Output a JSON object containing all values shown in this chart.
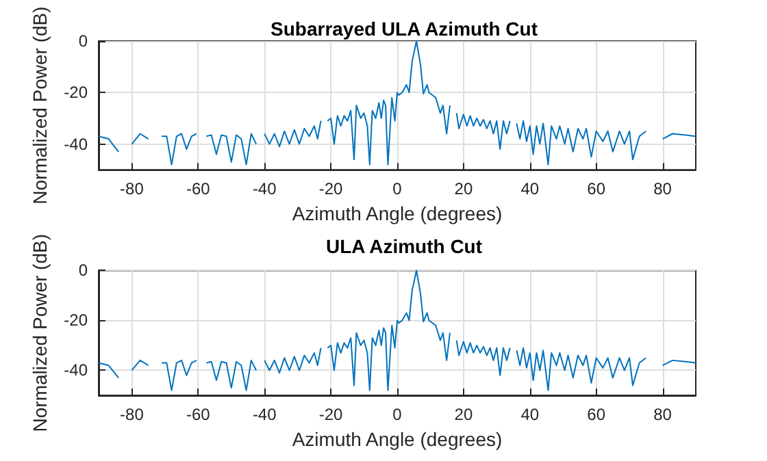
{
  "chart_data": [
    {
      "type": "line",
      "title": "Subarrayed ULA Azimuth Cut",
      "xlabel": "Azimuth Angle (degrees)",
      "ylabel": "Normalized Power (dB)",
      "xlim": [
        -90,
        90
      ],
      "ylim": [
        -50,
        0
      ],
      "xticks": [
        -80,
        -60,
        -40,
        -20,
        0,
        20,
        40,
        60,
        80
      ],
      "yticks": [
        -40,
        -20,
        0
      ],
      "grid": true,
      "marker": "none",
      "line_style": "solid",
      "series": [
        {
          "color": "#0072bd",
          "x": [
            -90,
            -87,
            -84,
            -82.5,
            -80,
            -77.5,
            -75,
            -73,
            -71,
            -69.5,
            -68,
            -66.5,
            -65,
            -63.5,
            -62,
            -60.5,
            -59,
            -57.5,
            -56,
            -54.5,
            -53,
            -51.5,
            -50,
            -48.5,
            -47,
            -45.5,
            -44,
            -42.5,
            -41,
            -40,
            -38.5,
            -37,
            -35.5,
            -34,
            -32.5,
            -31,
            -29.5,
            -28,
            -26.5,
            -25,
            -24,
            -23,
            -22,
            -21,
            -20,
            -19,
            -18,
            -17,
            -16,
            -15,
            -14,
            -13,
            -12.3,
            -11,
            -10,
            -9,
            -8.3,
            -7.5,
            -6.5,
            -5.5,
            -4.8,
            -4.1,
            -3.5,
            -2.8,
            -1.6,
            -0.7,
            0,
            0.5,
            1.5,
            2.8,
            3.6,
            4.5,
            5.8,
            7,
            7.9,
            9,
            9.6,
            11.6,
            13,
            13.8,
            14.9,
            15.9,
            16.8,
            17.9,
            18.6,
            20,
            21,
            22,
            23,
            24,
            25,
            26,
            27,
            28,
            29,
            30,
            31,
            32,
            33,
            34,
            35,
            36,
            37,
            38,
            39,
            40,
            41,
            42,
            43,
            44,
            45.5,
            46.5,
            48,
            49,
            50.5,
            51.5,
            53,
            54.5,
            56,
            57,
            58.5,
            60,
            62,
            63.5,
            65,
            67,
            68.5,
            70,
            71,
            73,
            75,
            77.7,
            80,
            83,
            87,
            90
          ],
          "values": [
            -37,
            -38,
            -43,
            null,
            -40,
            -36,
            -38,
            null,
            -37,
            -37,
            -48,
            -37,
            -36,
            -42,
            -37,
            -36,
            null,
            -37,
            -36.5,
            -44,
            -36.5,
            -37,
            -47,
            -36.5,
            -38,
            -48,
            -36,
            -40,
            null,
            -36,
            -40,
            -36,
            -41,
            -35,
            -40,
            -34.5,
            -40,
            -34,
            -37,
            -33,
            -38,
            -31,
            null,
            -31,
            -30,
            -40,
            -29,
            -33,
            -29,
            -31,
            -27,
            -46,
            -25,
            -30,
            -28,
            -33,
            -48,
            -27,
            -30,
            -24,
            -30,
            -23,
            -25,
            -48,
            -22,
            -31,
            -20,
            -21,
            -20,
            -17,
            -20,
            -8,
            0,
            -9,
            -20.5,
            -17,
            -20,
            -22,
            -28,
            -25,
            -36,
            -25,
            null,
            -28,
            -34,
            -28.5,
            -33,
            -29,
            -33,
            -30,
            -33,
            -30.5,
            -34,
            -31,
            -36,
            -31,
            -42,
            -31,
            -36,
            -31,
            null,
            -32,
            -38,
            -31,
            -39,
            -33,
            -44,
            -33,
            -40,
            -32,
            -48,
            -33,
            -38,
            -33,
            -40,
            -34,
            -43,
            -34,
            -38,
            -34,
            -45,
            -35,
            -39,
            -35,
            -43,
            -35,
            -40,
            -35,
            -46,
            -37,
            -35,
            null,
            -38,
            -36,
            -36.5,
            -37
          ]
        }
      ]
    },
    {
      "type": "line",
      "title": "ULA Azimuth Cut",
      "xlabel": "Azimuth Angle (degrees)",
      "ylabel": "Normalized Power (dB)",
      "xlim": [
        -90,
        90
      ],
      "ylim": [
        -50,
        0
      ],
      "xticks": [
        -80,
        -60,
        -40,
        -20,
        0,
        20,
        40,
        60,
        80
      ],
      "yticks": [
        -40,
        -20,
        0
      ],
      "grid": true,
      "marker": "none",
      "line_style": "solid",
      "series": [
        {
          "color": "#0072bd",
          "x": [
            -90,
            -87,
            -84,
            -82.5,
            -80,
            -77.5,
            -75,
            -73,
            -71,
            -69.5,
            -68,
            -66.5,
            -65,
            -63.5,
            -62,
            -60.5,
            -59,
            -57.5,
            -56,
            -54.5,
            -53,
            -51.5,
            -50,
            -48.5,
            -47,
            -45.5,
            -44,
            -42.5,
            -41,
            -40,
            -38.5,
            -37,
            -35.5,
            -34,
            -32.5,
            -31,
            -29.5,
            -28,
            -26.5,
            -25,
            -24,
            -23,
            -22,
            -21,
            -20,
            -19,
            -18,
            -17,
            -16,
            -15,
            -14,
            -13,
            -12.3,
            -11,
            -10,
            -9,
            -8.3,
            -7.5,
            -6.5,
            -5.5,
            -4.8,
            -4.1,
            -3.5,
            -2.8,
            -1.6,
            -0.7,
            0,
            0.5,
            1.5,
            2.8,
            3.6,
            4.5,
            5.8,
            7,
            7.9,
            9,
            9.6,
            11.6,
            13,
            13.8,
            14.9,
            15.9,
            16.8,
            17.9,
            18.6,
            20,
            21,
            22,
            23,
            24,
            25,
            26,
            27,
            28,
            29,
            30,
            31,
            32,
            33,
            34,
            35,
            36,
            37,
            38,
            39,
            40,
            41,
            42,
            43,
            44,
            45.5,
            46.5,
            48,
            49,
            50.5,
            51.5,
            53,
            54.5,
            56,
            57,
            58.5,
            60,
            62,
            63.5,
            65,
            67,
            68.5,
            70,
            71,
            73,
            75,
            77.7,
            80,
            83,
            87,
            90
          ],
          "values": [
            -37,
            -38,
            -43,
            null,
            -40,
            -36,
            -38,
            null,
            -37,
            -37,
            -48,
            -37,
            -36,
            -42,
            -37,
            -36,
            null,
            -37,
            -36.5,
            -44,
            -36.5,
            -37,
            -47,
            -36.5,
            -38,
            -48,
            -36,
            -40,
            null,
            -36,
            -40,
            -36,
            -41,
            -35,
            -40,
            -34.5,
            -40,
            -34,
            -37,
            -33,
            -38,
            -31,
            null,
            -31,
            -30,
            -40,
            -29,
            -33,
            -29,
            -31,
            -27,
            -46,
            -25,
            -30,
            -28,
            -33,
            -48,
            -27,
            -30,
            -24,
            -30,
            -23,
            -25,
            -48,
            -22,
            -31,
            -20,
            -21,
            -20,
            -17,
            -20,
            -8,
            0,
            -9,
            -20.5,
            -17,
            -20,
            -22,
            -28,
            -25,
            -36,
            -25,
            null,
            -28,
            -34,
            -28.5,
            -33,
            -29,
            -33,
            -30,
            -33,
            -30.5,
            -34,
            -31,
            -36,
            -31,
            -42,
            -31,
            -36,
            -31,
            null,
            -32,
            -38,
            -31,
            -39,
            -33,
            -44,
            -33,
            -40,
            -32,
            -48,
            -33,
            -38,
            -33,
            -40,
            -34,
            -43,
            -34,
            -38,
            -34,
            -45,
            -35,
            -39,
            -35,
            -43,
            -35,
            -40,
            -35,
            -46,
            -37,
            -35,
            null,
            -38,
            -36,
            -36.5,
            -37
          ]
        }
      ]
    }
  ]
}
